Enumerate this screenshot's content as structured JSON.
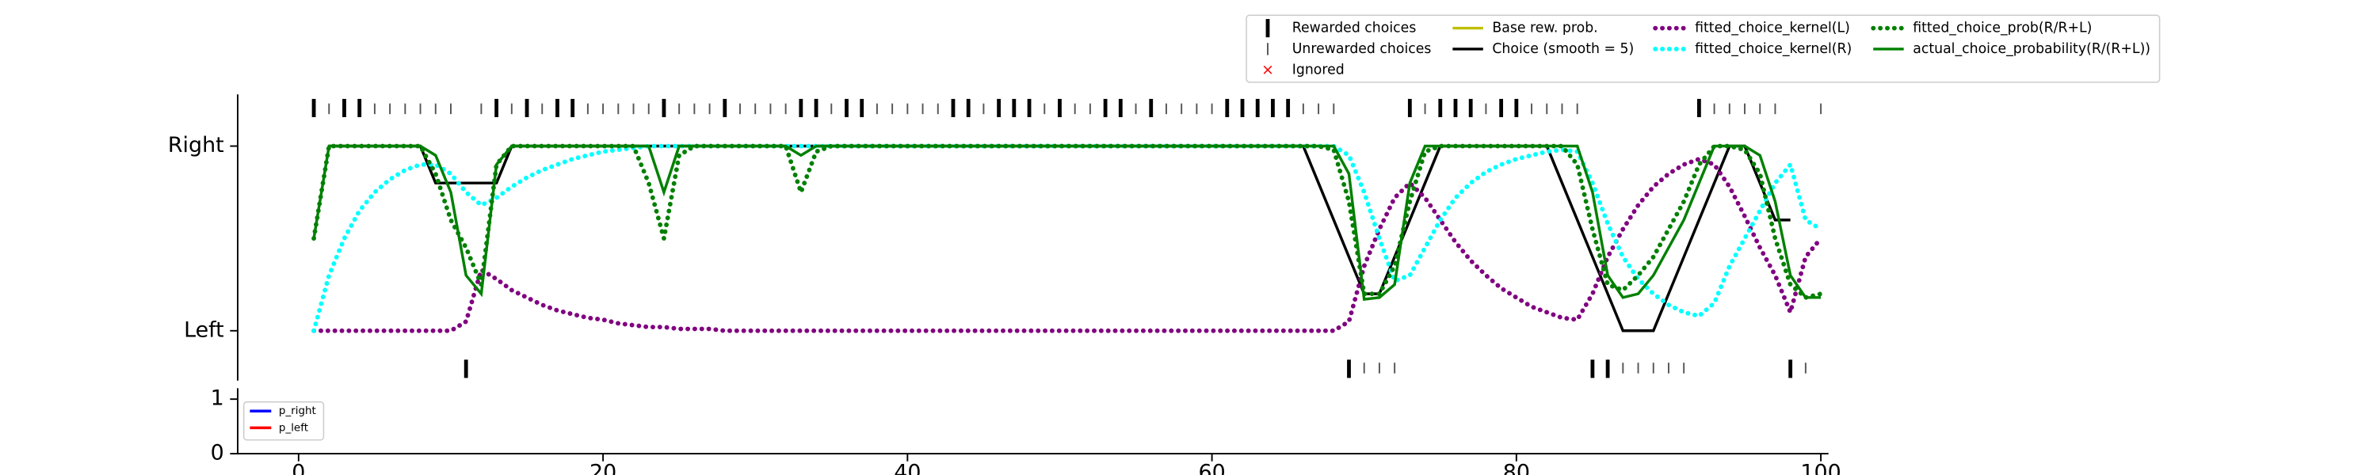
{
  "chart_data": [
    {
      "type": "line",
      "x": [
        1,
        2,
        3,
        4,
        5,
        6,
        7,
        8,
        9,
        10,
        11,
        12,
        13,
        14,
        15,
        16,
        17,
        18,
        19,
        20,
        21,
        22,
        23,
        24,
        25,
        26,
        27,
        28,
        29,
        30,
        31,
        32,
        33,
        34,
        35,
        36,
        37,
        38,
        39,
        40,
        41,
        42,
        43,
        44,
        45,
        46,
        47,
        48,
        49,
        50,
        51,
        52,
        53,
        54,
        55,
        56,
        57,
        58,
        59,
        60,
        61,
        62,
        63,
        64,
        65,
        66,
        67,
        68,
        69,
        70,
        71,
        72,
        73,
        74,
        75,
        76,
        77,
        78,
        79,
        80,
        81,
        82,
        83,
        84,
        85,
        86,
        87,
        88,
        89,
        90,
        91,
        92,
        93,
        94,
        95,
        96,
        97,
        98,
        99,
        100
      ],
      "xlim": [
        -4,
        100.5
      ],
      "ylim": [
        -0.27,
        1.28
      ],
      "yticks": [
        {
          "value": 0,
          "label": "Left"
        },
        {
          "value": 1,
          "label": "Right"
        }
      ],
      "legend": "upper right",
      "legend_columns": 4,
      "series": [
        {
          "name": "Rewarded choices",
          "color": "#000000",
          "style": "event",
          "x": [
            1,
            3,
            4,
            11,
            13,
            15,
            17,
            18,
            24,
            28,
            33,
            34,
            36,
            37,
            43,
            44,
            46,
            47,
            48,
            50,
            53,
            54,
            56,
            61,
            62,
            63,
            64,
            65,
            69,
            73,
            75,
            76,
            77,
            79,
            80,
            85,
            86,
            92,
            98
          ],
          "values": [
            1,
            1,
            1,
            0,
            1,
            1,
            1,
            1,
            1,
            1,
            1,
            1,
            1,
            1,
            1,
            1,
            1,
            1,
            1,
            1,
            1,
            1,
            1,
            1,
            1,
            1,
            1,
            1,
            0,
            1,
            1,
            1,
            1,
            1,
            1,
            0,
            0,
            1,
            0
          ]
        },
        {
          "name": "Unrewarded choices",
          "color": "#555555",
          "style": "event-thin",
          "x": [
            2,
            5,
            6,
            7,
            8,
            9,
            10,
            12,
            14,
            16,
            19,
            20,
            21,
            22,
            23,
            25,
            26,
            27,
            29,
            30,
            31,
            32,
            35,
            38,
            39,
            40,
            41,
            42,
            45,
            49,
            51,
            52,
            55,
            57,
            58,
            59,
            60,
            66,
            67,
            68,
            70,
            71,
            72,
            74,
            78,
            81,
            82,
            83,
            84,
            87,
            88,
            89,
            90,
            91,
            93,
            94,
            95,
            96,
            97,
            99,
            100
          ],
          "values": [
            1,
            1,
            1,
            1,
            1,
            1,
            1,
            1,
            1,
            1,
            1,
            1,
            1,
            1,
            1,
            1,
            1,
            1,
            1,
            1,
            1,
            1,
            1,
            1,
            1,
            1,
            1,
            1,
            1,
            1,
            1,
            1,
            1,
            1,
            1,
            1,
            1,
            1,
            1,
            1,
            0,
            0,
            0,
            1,
            1,
            1,
            1,
            1,
            1,
            0,
            0,
            0,
            0,
            0,
            1,
            1,
            1,
            1,
            1,
            0,
            1
          ]
        },
        {
          "name": "Ignored",
          "color": "#ff0000",
          "style": "marker-x"
        },
        {
          "name": "Base rew. prob.",
          "color": "#bfbf00",
          "style": "solid"
        },
        {
          "name": "Choice (smooth = 5)",
          "color": "#000000",
          "style": "solid",
          "values": [
            null,
            1,
            1,
            1,
            1,
            1,
            1,
            1,
            0.8,
            0.8,
            0.8,
            0.8,
            0.8,
            1,
            1,
            1,
            1,
            1,
            1,
            1,
            1,
            1,
            1,
            1,
            1,
            1,
            1,
            1,
            1,
            1,
            1,
            1,
            1,
            1,
            1,
            1,
            1,
            1,
            1,
            1,
            1,
            1,
            1,
            1,
            1,
            1,
            1,
            1,
            1,
            1,
            1,
            1,
            1,
            1,
            1,
            1,
            1,
            1,
            1,
            1,
            1,
            1,
            1,
            1,
            1,
            1,
            0.8,
            0.6,
            0.4,
            0.2,
            0.2,
            0.4,
            0.6,
            0.8,
            1,
            1,
            1,
            1,
            1,
            1,
            1,
            1,
            0.8,
            0.6,
            0.4,
            0.2,
            0,
            0,
            0,
            0.2,
            0.4,
            0.6,
            0.8,
            1,
            1,
            0.8,
            0.6,
            0.6,
            null,
            null
          ]
        },
        {
          "name": "fitted_choice_kernel(L)",
          "color": "#800080",
          "style": "dotted",
          "values": [
            0,
            0,
            0,
            0,
            0,
            0,
            0,
            0,
            0,
            0,
            0.05,
            0.33,
            0.28,
            0.22,
            0.18,
            0.14,
            0.11,
            0.09,
            0.07,
            0.06,
            0.04,
            0.03,
            0.02,
            0.02,
            0.01,
            0.01,
            0.01,
            0,
            0,
            0,
            0,
            0,
            0,
            0,
            0,
            0,
            0,
            0,
            0,
            0,
            0,
            0,
            0,
            0,
            0,
            0,
            0,
            0,
            0,
            0,
            0,
            0,
            0,
            0,
            0,
            0,
            0,
            0,
            0,
            0,
            0,
            0,
            0,
            0,
            0,
            0,
            0,
            0,
            0.05,
            0.35,
            0.55,
            0.72,
            0.8,
            0.72,
            0.6,
            0.48,
            0.38,
            0.3,
            0.23,
            0.18,
            0.13,
            0.1,
            0.07,
            0.06,
            0.2,
            0.4,
            0.55,
            0.68,
            0.78,
            0.85,
            0.9,
            0.93,
            0.9,
            0.78,
            0.62,
            0.45,
            0.3,
            0.1,
            0.4,
            0.5
          ]
        },
        {
          "name": "fitted_choice_kernel(R)",
          "color": "#00ffff",
          "style": "dotted",
          "values": [
            0,
            0.3,
            0.5,
            0.65,
            0.75,
            0.82,
            0.87,
            0.9,
            0.9,
            0.85,
            0.75,
            0.68,
            0.72,
            0.78,
            0.83,
            0.87,
            0.9,
            0.93,
            0.95,
            0.97,
            0.98,
            0.99,
            1,
            1,
            1,
            1,
            1,
            1,
            1,
            1,
            1,
            1,
            1,
            1,
            1,
            1,
            1,
            1,
            1,
            1,
            1,
            1,
            1,
            1,
            1,
            1,
            1,
            1,
            1,
            1,
            1,
            1,
            1,
            1,
            1,
            1,
            1,
            1,
            1,
            1,
            1,
            1,
            1,
            1,
            1,
            1,
            1,
            1,
            0.95,
            0.75,
            0.5,
            0.27,
            0.3,
            0.45,
            0.6,
            0.72,
            0.8,
            0.86,
            0.9,
            0.93,
            0.95,
            0.97,
            0.98,
            0.97,
            0.8,
            0.58,
            0.4,
            0.28,
            0.2,
            0.14,
            0.1,
            0.08,
            0.15,
            0.35,
            0.5,
            0.65,
            0.8,
            0.9,
            0.6,
            0.55
          ]
        },
        {
          "name": "fitted_choice_prob(R/R+L)",
          "color": "#008000",
          "style": "dotted",
          "values": [
            0.5,
            1,
            1,
            1,
            1,
            1,
            1,
            1,
            0.85,
            0.6,
            0.45,
            0.25,
            0.9,
            1,
            1,
            1,
            1,
            1,
            1,
            1,
            1,
            1,
            0.8,
            0.5,
            0.95,
            1,
            1,
            1,
            1,
            1,
            1,
            1,
            0.75,
            0.97,
            1,
            1,
            1,
            1,
            1,
            1,
            1,
            1,
            1,
            1,
            1,
            1,
            1,
            1,
            1,
            1,
            1,
            1,
            1,
            1,
            1,
            1,
            1,
            1,
            1,
            1,
            1,
            1,
            1,
            1,
            1,
            1,
            1,
            0.98,
            0.7,
            0.2,
            0.2,
            0.35,
            0.7,
            0.97,
            1,
            1,
            1,
            1,
            1,
            1,
            1,
            1,
            1,
            0.9,
            0.55,
            0.25,
            0.22,
            0.3,
            0.4,
            0.55,
            0.7,
            0.9,
            1,
            1,
            0.98,
            0.85,
            0.5,
            0.25,
            0.18,
            0.2
          ]
        },
        {
          "name": "actual_choice_probability(R/(R+L))",
          "color": "#008000",
          "style": "solid",
          "values": [
            0.5,
            1,
            1,
            1,
            1,
            1,
            1,
            1,
            0.95,
            0.75,
            0.3,
            0.2,
            0.9,
            1,
            1,
            1,
            1,
            1,
            1,
            1,
            1,
            1,
            1,
            0.75,
            1,
            1,
            1,
            1,
            1,
            1,
            1,
            1,
            0.95,
            1,
            1,
            1,
            1,
            1,
            1,
            1,
            1,
            1,
            1,
            1,
            1,
            1,
            1,
            1,
            1,
            1,
            1,
            1,
            1,
            1,
            1,
            1,
            1,
            1,
            1,
            1,
            1,
            1,
            1,
            1,
            1,
            1,
            1,
            1,
            0.85,
            0.17,
            0.18,
            0.25,
            0.8,
            1,
            1,
            1,
            1,
            1,
            1,
            1,
            1,
            1,
            1,
            1,
            0.75,
            0.3,
            0.18,
            0.2,
            0.3,
            0.45,
            0.6,
            0.8,
            1,
            1,
            1,
            0.95,
            0.7,
            0.3,
            0.18,
            0.18
          ]
        }
      ]
    },
    {
      "type": "line",
      "xlim": [
        -4,
        100.5
      ],
      "ylim": [
        0,
        1.2
      ],
      "yticks": [
        0,
        1
      ],
      "xticks": [
        0,
        20,
        40,
        60,
        80,
        100
      ],
      "legend": "upper left",
      "series": [
        {
          "name": "p_right",
          "color": "#0000ff",
          "style": "solid"
        },
        {
          "name": "p_left",
          "color": "#ff0000",
          "style": "solid"
        }
      ]
    }
  ]
}
